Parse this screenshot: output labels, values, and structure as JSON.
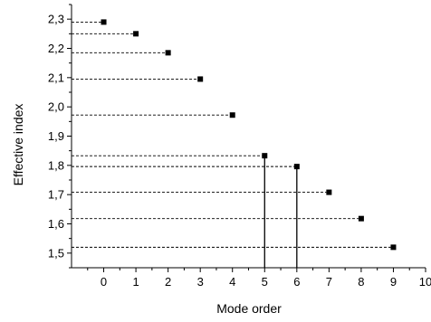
{
  "chart_data": {
    "type": "scatter",
    "xlabel": "Mode order",
    "ylabel": "Effective index",
    "xlim": [
      -1,
      10
    ],
    "ylim": [
      1.45,
      2.35
    ],
    "x_ticks": [
      0,
      1,
      2,
      3,
      4,
      5,
      6,
      7,
      8,
      9,
      10
    ],
    "x_tick_labels": [
      "0",
      "1",
      "2",
      "3",
      "4",
      "5",
      "6",
      "7",
      "8",
      "9",
      "10"
    ],
    "y_ticks": [
      1.5,
      1.6,
      1.7,
      1.8,
      1.9,
      2.0,
      2.1,
      2.2,
      2.3
    ],
    "y_tick_labels": [
      "1,5",
      "1,6",
      "1,7",
      "1,8",
      "1,9",
      "2,0",
      "2,1",
      "2,2",
      "2,3"
    ],
    "grid": false,
    "marker": "square",
    "marker_color": "#000000",
    "x": [
      0,
      1,
      2,
      3,
      4,
      5,
      6,
      7,
      8,
      9
    ],
    "y": [
      2.29,
      2.25,
      2.185,
      2.095,
      1.972,
      1.833,
      1.796,
      1.708,
      1.618,
      1.52
    ],
    "dashed_leaders_to_y_axis": true,
    "vertical_drop_lines_at_x": [
      5,
      6
    ]
  }
}
